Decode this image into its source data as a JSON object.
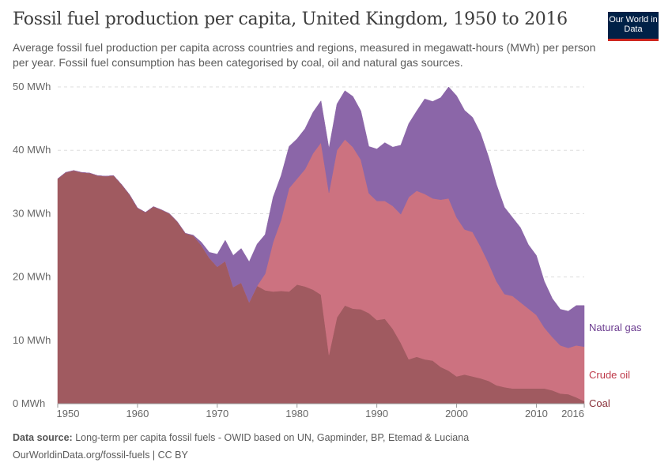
{
  "header": {
    "title": "Fossil fuel production per capita, United Kingdom, 1950 to 2016",
    "subtitle": "Average fossil fuel production per capita across countries and regions, measured in megawatt-hours (MWh) per person per year. Fossil fuel consumption has been categorised by coal, oil and natural gas sources.",
    "logo": "Our World in Data"
  },
  "footer": {
    "source_label": "Data source:",
    "source": "Long-term per capita fossil fuels - OWID based on UN, Gapminder, BP, Etemad & Luciana",
    "url_license": "OurWorldinData.org/fossil-fuels | CC BY"
  },
  "chart_data": {
    "type": "area",
    "stacked": true,
    "title": "Fossil fuel production per capita, United Kingdom, 1950 to 2016",
    "xlim": [
      1950,
      2016
    ],
    "ylim": [
      0,
      50
    ],
    "x_ticks": [
      "1950",
      "1960",
      "1970",
      "1980",
      "1990",
      "2000",
      "2010",
      "2016"
    ],
    "y_ticks": [
      "0 MWh",
      "10 MWh",
      "20 MWh",
      "30 MWh",
      "40 MWh",
      "50 MWh"
    ],
    "grid": "horizontal dashed",
    "legend": "right, inline labels",
    "x": [
      1950,
      1951,
      1952,
      1953,
      1954,
      1955,
      1956,
      1957,
      1958,
      1959,
      1960,
      1961,
      1962,
      1963,
      1964,
      1965,
      1966,
      1967,
      1968,
      1969,
      1970,
      1971,
      1972,
      1973,
      1974,
      1975,
      1976,
      1977,
      1978,
      1979,
      1980,
      1981,
      1982,
      1983,
      1984,
      1985,
      1986,
      1987,
      1988,
      1989,
      1990,
      1991,
      1992,
      1993,
      1994,
      1995,
      1996,
      1997,
      1998,
      1999,
      2000,
      2001,
      2002,
      2003,
      2004,
      2005,
      2006,
      2007,
      2008,
      2009,
      2010,
      2011,
      2012,
      2013,
      2014,
      2015,
      2016
    ],
    "series": [
      {
        "name": "Coal",
        "color": "#a05a60",
        "label_color": "#883039",
        "values": [
          35.5,
          36.5,
          36.8,
          36.5,
          36.4,
          36.0,
          35.9,
          36.0,
          34.6,
          33.0,
          30.9,
          30.2,
          31.1,
          30.6,
          30.0,
          28.7,
          26.9,
          26.5,
          25.0,
          23.0,
          21.6,
          22.5,
          18.4,
          19.1,
          16.0,
          18.6,
          17.9,
          17.7,
          17.8,
          17.7,
          18.8,
          18.5,
          18.0,
          17.2,
          7.7,
          13.6,
          15.5,
          15.0,
          14.9,
          14.3,
          13.2,
          13.4,
          11.8,
          9.6,
          7.0,
          7.4,
          7.0,
          6.8,
          5.8,
          5.2,
          4.3,
          4.6,
          4.3,
          4.0,
          3.6,
          2.9,
          2.6,
          2.4,
          2.4,
          2.4,
          2.4,
          2.4,
          2.1,
          1.6,
          1.5,
          1.0,
          0.4
        ]
      },
      {
        "name": "Crude oil",
        "color": "#cc7280",
        "label_color": "#be3a4a",
        "values": [
          0,
          0,
          0,
          0,
          0,
          0,
          0,
          0,
          0,
          0,
          0,
          0,
          0,
          0,
          0,
          0,
          0,
          0,
          0,
          0,
          0,
          0,
          0,
          0,
          0,
          0,
          2.6,
          7.8,
          11.2,
          16.3,
          16.7,
          18.5,
          21.5,
          24.0,
          25.6,
          26.4,
          26.2,
          25.5,
          23.6,
          18.9,
          18.8,
          18.6,
          19.4,
          20.3,
          25.6,
          26.2,
          26.1,
          25.6,
          26.4,
          27.2,
          25.1,
          22.9,
          22.8,
          20.8,
          18.6,
          16.4,
          14.7,
          14.6,
          13.6,
          12.6,
          11.6,
          9.6,
          8.4,
          7.6,
          7.3,
          8.2,
          8.6
        ]
      },
      {
        "name": "Natural gas",
        "color": "#8b66a8",
        "label_color": "#6d3e91",
        "values": [
          0,
          0,
          0,
          0,
          0,
          0,
          0,
          0,
          0,
          0,
          0,
          0,
          0,
          0,
          0,
          0,
          0,
          0.1,
          0.5,
          0.9,
          2.0,
          3.3,
          5.0,
          5.4,
          6.4,
          6.6,
          6.2,
          7.1,
          7.0,
          6.6,
          6.3,
          6.4,
          6.5,
          6.6,
          7.0,
          7.3,
          7.7,
          8.0,
          7.7,
          7.4,
          8.2,
          9.2,
          9.3,
          10.9,
          11.6,
          12.6,
          15.0,
          15.3,
          16.1,
          17.6,
          19.2,
          18.8,
          18.1,
          17.9,
          16.8,
          15.3,
          13.7,
          12.4,
          11.8,
          10.1,
          9.4,
          7.3,
          6.1,
          5.7,
          5.8,
          6.3,
          6.5
        ]
      }
    ]
  }
}
